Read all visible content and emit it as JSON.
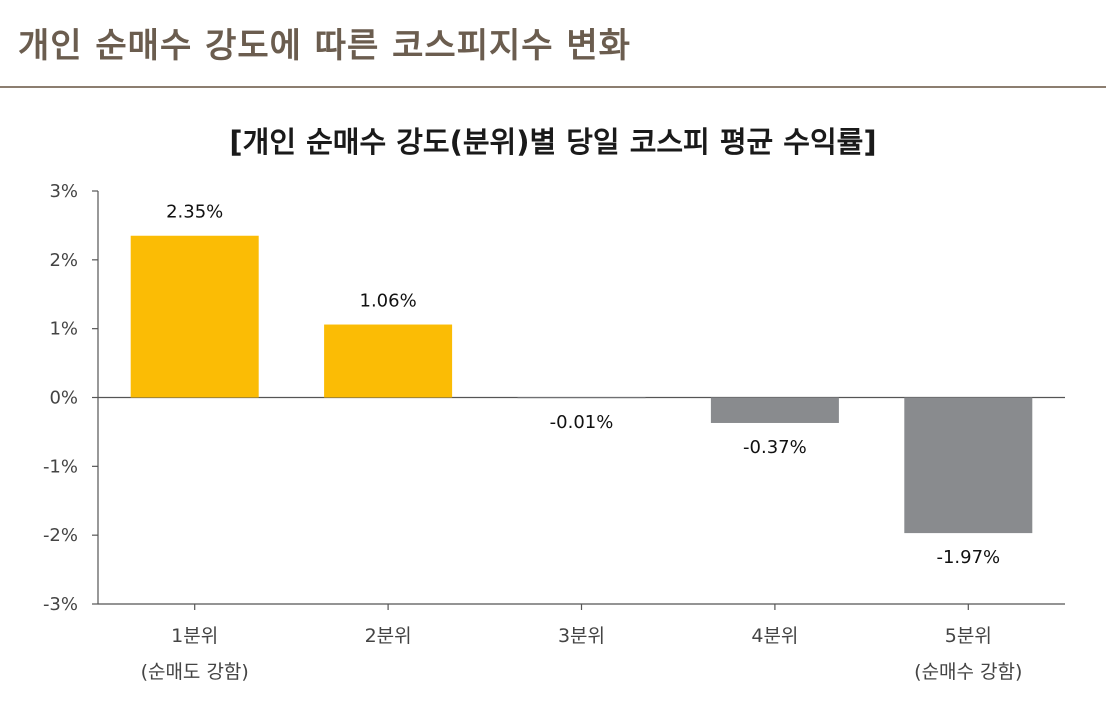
{
  "page": {
    "title": "개인 순매수 강도에 따른 코스피지수 변화"
  },
  "chart_data": {
    "type": "bar",
    "title": "[개인 순매수 강도(분위)별 당일 코스피 평균 수익률]",
    "xlabel": "",
    "ylabel": "",
    "categories": [
      "1분위",
      "2분위",
      "3분위",
      "4분위",
      "5분위"
    ],
    "category_sublabels": [
      "(순매도 강함)",
      "",
      "",
      "",
      "(순매수 강함)"
    ],
    "values": [
      2.35,
      1.06,
      -0.01,
      -0.37,
      -1.97
    ],
    "data_labels": [
      "2.35%",
      "1.06%",
      "-0.01%",
      "-0.37%",
      "-1.97%"
    ],
    "ylim": [
      -3,
      3
    ],
    "yticks": [
      3,
      2,
      1,
      0,
      -1,
      -2,
      -3
    ],
    "ytick_labels": [
      "3%",
      "2%",
      "1%",
      "0%",
      "-1%",
      "-2%",
      "-3%"
    ],
    "grid": false,
    "legend": "none",
    "colors": {
      "positive": "#fbbc05",
      "negative": "#898b8e",
      "axis": "#555555"
    }
  }
}
